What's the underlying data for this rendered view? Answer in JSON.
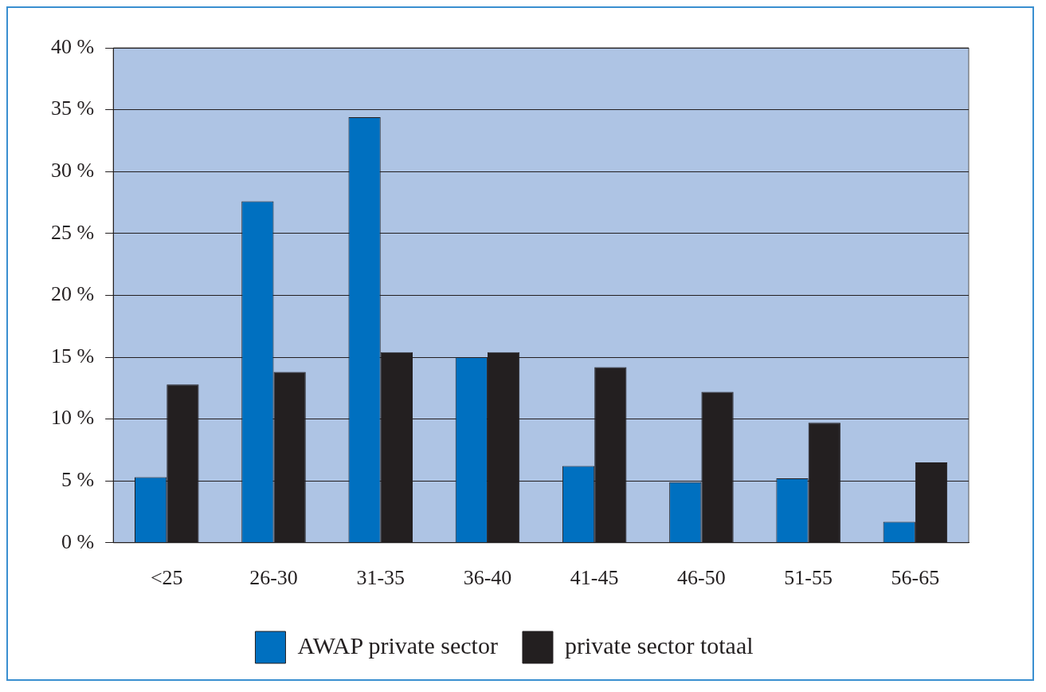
{
  "chart_data": {
    "type": "bar",
    "categories": [
      "<25",
      "26-30",
      "31-35",
      "36-40",
      "41-45",
      "46-50",
      "51-55",
      "56-65"
    ],
    "series": [
      {
        "name": "AWAP private sector",
        "color": "#0070c0",
        "values": [
          5.3,
          27.6,
          34.4,
          15.0,
          6.2,
          4.9,
          5.2,
          1.7
        ]
      },
      {
        "name": "private sector totaal",
        "color": "#231f20",
        "values": [
          12.8,
          13.8,
          15.4,
          15.4,
          14.2,
          12.2,
          9.7,
          6.5
        ]
      }
    ],
    "ylim": [
      0,
      40
    ],
    "yticks": [
      {
        "value": 0,
        "label": "0 %"
      },
      {
        "value": 5,
        "label": "5 %"
      },
      {
        "value": 10,
        "label": "10 %"
      },
      {
        "value": 15,
        "label": "15 %"
      },
      {
        "value": 20,
        "label": "20 %"
      },
      {
        "value": 25,
        "label": "25 %"
      },
      {
        "value": 30,
        "label": "30 %"
      },
      {
        "value": 35,
        "label": "35 %"
      },
      {
        "value": 40,
        "label": "40 %"
      }
    ],
    "grid": "y",
    "legend": "bottom"
  }
}
